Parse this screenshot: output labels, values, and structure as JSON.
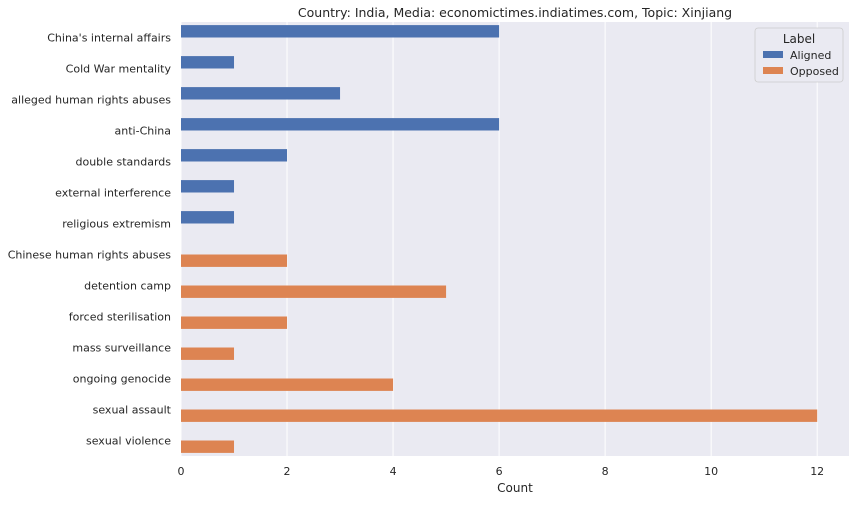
{
  "chart_data": {
    "type": "bar",
    "orientation": "horizontal",
    "title": "Country: India, Media: economictimes.indiatimes.com, Topic: Xinjiang",
    "xlabel": "Count",
    "ylabel": "",
    "xlim": [
      0,
      12.6
    ],
    "xticks": [
      0,
      2,
      4,
      6,
      8,
      10,
      12
    ],
    "grid": true,
    "legend": {
      "title": "Label",
      "placement": "top-right"
    },
    "categories": [
      "China's internal affairs",
      "Cold War mentality",
      "alleged human rights abuses",
      "anti-China",
      "double standards",
      "external interference",
      "religious extremism",
      "Chinese human rights abuses",
      "detention camp",
      "forced sterilisation",
      "mass surveillance",
      "ongoing genocide",
      "sexual assault",
      "sexual violence"
    ],
    "series": [
      {
        "name": "Aligned",
        "color": "#4c72b0",
        "values": [
          6,
          1,
          3,
          6,
          2,
          1,
          1,
          null,
          null,
          null,
          null,
          null,
          null,
          null
        ]
      },
      {
        "name": "Opposed",
        "color": "#dd8452",
        "values": [
          null,
          null,
          null,
          null,
          null,
          null,
          null,
          2,
          5,
          2,
          1,
          4,
          12,
          1
        ]
      }
    ]
  },
  "colors": {
    "background": "#eaeaf2",
    "grid": "#ffffff",
    "text": "#262626"
  }
}
